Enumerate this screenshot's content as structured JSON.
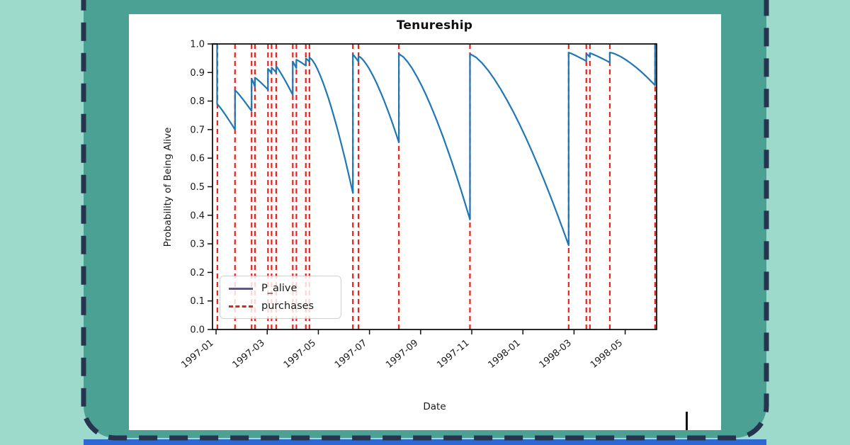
{
  "page": {
    "background_color": "#9edacc",
    "banner_color": "#4ba294",
    "dashed_border_color": "#263450",
    "bottom_strip_color": "#2e68d5",
    "card_color": "#ffffff"
  },
  "chart_data": {
    "type": "line",
    "title": "Tenureship",
    "xlabel": "Date",
    "ylabel": "Probability of Being Alive",
    "grid": false,
    "ylim": [
      0.0,
      1.0
    ],
    "yticks": [
      1.0,
      0.9,
      0.8,
      0.7,
      0.6,
      0.5,
      0.4,
      0.3,
      0.2,
      0.1,
      0.0
    ],
    "x_domain_m": [
      -0.14,
      17.23
    ],
    "xticks": [
      {
        "m": 0,
        "label": "1997-01"
      },
      {
        "m": 2,
        "label": "1997-03"
      },
      {
        "m": 4,
        "label": "1997-05"
      },
      {
        "m": 6,
        "label": "1997-07"
      },
      {
        "m": 8,
        "label": "1997-09"
      },
      {
        "m": 10,
        "label": "1997-11"
      },
      {
        "m": 12,
        "label": "1998-01"
      },
      {
        "m": 14,
        "label": "1998-03"
      },
      {
        "m": 16,
        "label": "1998-05"
      }
    ],
    "legend": {
      "position": "lower left",
      "entries": [
        {
          "label": "P_alive",
          "style": "solid",
          "color": "#5f5a7d"
        },
        {
          "label": "purchases",
          "style": "dashed",
          "color": "#dd2420"
        }
      ]
    },
    "series": {
      "p_alive": {
        "name": "P_alive",
        "color": "#1f77b4",
        "keypoints_m_v": [
          [
            -0.14,
            1.0
          ],
          [
            0.04,
            1.0
          ],
          [
            0.04,
            0.79
          ],
          [
            0.74,
            0.7
          ],
          [
            0.74,
            0.838
          ],
          [
            1.39,
            0.765
          ],
          [
            1.39,
            0.878
          ],
          [
            1.52,
            0.85
          ],
          [
            1.52,
            0.882
          ],
          [
            2.03,
            0.84
          ],
          [
            2.03,
            0.913
          ],
          [
            2.17,
            0.897
          ],
          [
            2.17,
            0.917
          ],
          [
            2.35,
            0.9
          ],
          [
            2.35,
            0.922
          ],
          [
            3.0,
            0.822
          ],
          [
            3.0,
            0.938
          ],
          [
            3.14,
            0.915
          ],
          [
            3.14,
            0.945
          ],
          [
            3.51,
            0.924
          ],
          [
            3.51,
            0.949
          ],
          [
            3.65,
            0.938
          ],
          [
            3.65,
            0.953
          ],
          [
            5.35,
            0.478
          ],
          [
            5.35,
            0.963
          ],
          [
            5.57,
            0.938
          ],
          [
            5.57,
            0.957
          ],
          [
            7.15,
            0.655
          ],
          [
            7.15,
            0.965
          ],
          [
            9.93,
            0.385
          ],
          [
            9.93,
            0.965
          ],
          [
            13.79,
            0.295
          ],
          [
            13.79,
            0.97
          ],
          [
            14.48,
            0.94
          ],
          [
            14.48,
            0.966
          ],
          [
            14.62,
            0.954
          ],
          [
            14.62,
            0.968
          ],
          [
            15.4,
            0.935
          ],
          [
            15.4,
            0.97
          ],
          [
            17.17,
            0.855
          ],
          [
            17.17,
            1.0
          ],
          [
            17.23,
            1.0
          ]
        ]
      },
      "purchases": {
        "name": "purchases",
        "color": "#e32520",
        "dash": [
          7,
          5
        ],
        "x_m": [
          0.05,
          0.74,
          1.39,
          1.52,
          2.03,
          2.17,
          2.35,
          3.0,
          3.14,
          3.51,
          3.65,
          5.35,
          5.57,
          7.15,
          9.93,
          13.79,
          14.48,
          14.62,
          15.4,
          17.17
        ],
        "approx_dates": [
          "1997-01-02",
          "1997-01-23",
          "1997-02-12",
          "1997-02-16",
          "1997-03-02",
          "1997-03-06",
          "1997-03-11",
          "1997-04-01",
          "1997-04-05",
          "1997-04-16",
          "1997-04-20",
          "1997-06-11",
          "1997-06-18",
          "1997-08-05",
          "1997-10-29",
          "1998-02-24",
          "1998-03-15",
          "1998-03-19",
          "1998-04-12",
          "1998-06-05"
        ]
      }
    }
  }
}
